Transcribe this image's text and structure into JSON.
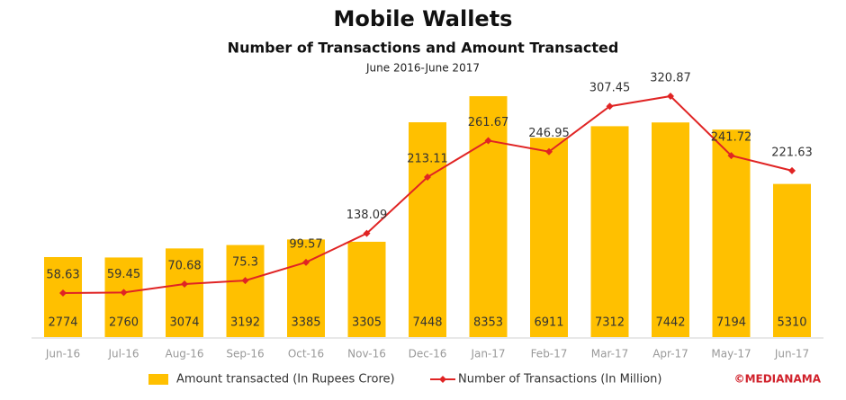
{
  "chart_data": {
    "type": "bar",
    "title": "Mobile Wallets",
    "subtitle": "Number of Transactions and Amount Transacted",
    "period": "June 2016-June 2017",
    "watermark": "©MEDIANAMA",
    "categories": [
      "Jun-16",
      "Jul-16",
      "Aug-16",
      "Sep-16",
      "Oct-16",
      "Nov-16",
      "Dec-16",
      "Jan-17",
      "Feb-17",
      "Mar-17",
      "Apr-17",
      "May-17",
      "Jun-17"
    ],
    "series": [
      {
        "name": "Amount transacted (In Rupees Crore)",
        "type": "bar",
        "color": "#ffc000",
        "values": [
          2774,
          2760,
          3074,
          3192,
          3385,
          3305,
          7448,
          8353,
          6911,
          7312,
          7442,
          7194,
          5310
        ]
      },
      {
        "name": "Number of Transactions (In Million)",
        "type": "line",
        "color": "#e02424",
        "values": [
          58.63,
          59.45,
          70.68,
          75.3,
          99.57,
          138.09,
          213.11,
          261.67,
          246.95,
          307.45,
          320.87,
          241.72,
          221.63
        ]
      }
    ]
  }
}
